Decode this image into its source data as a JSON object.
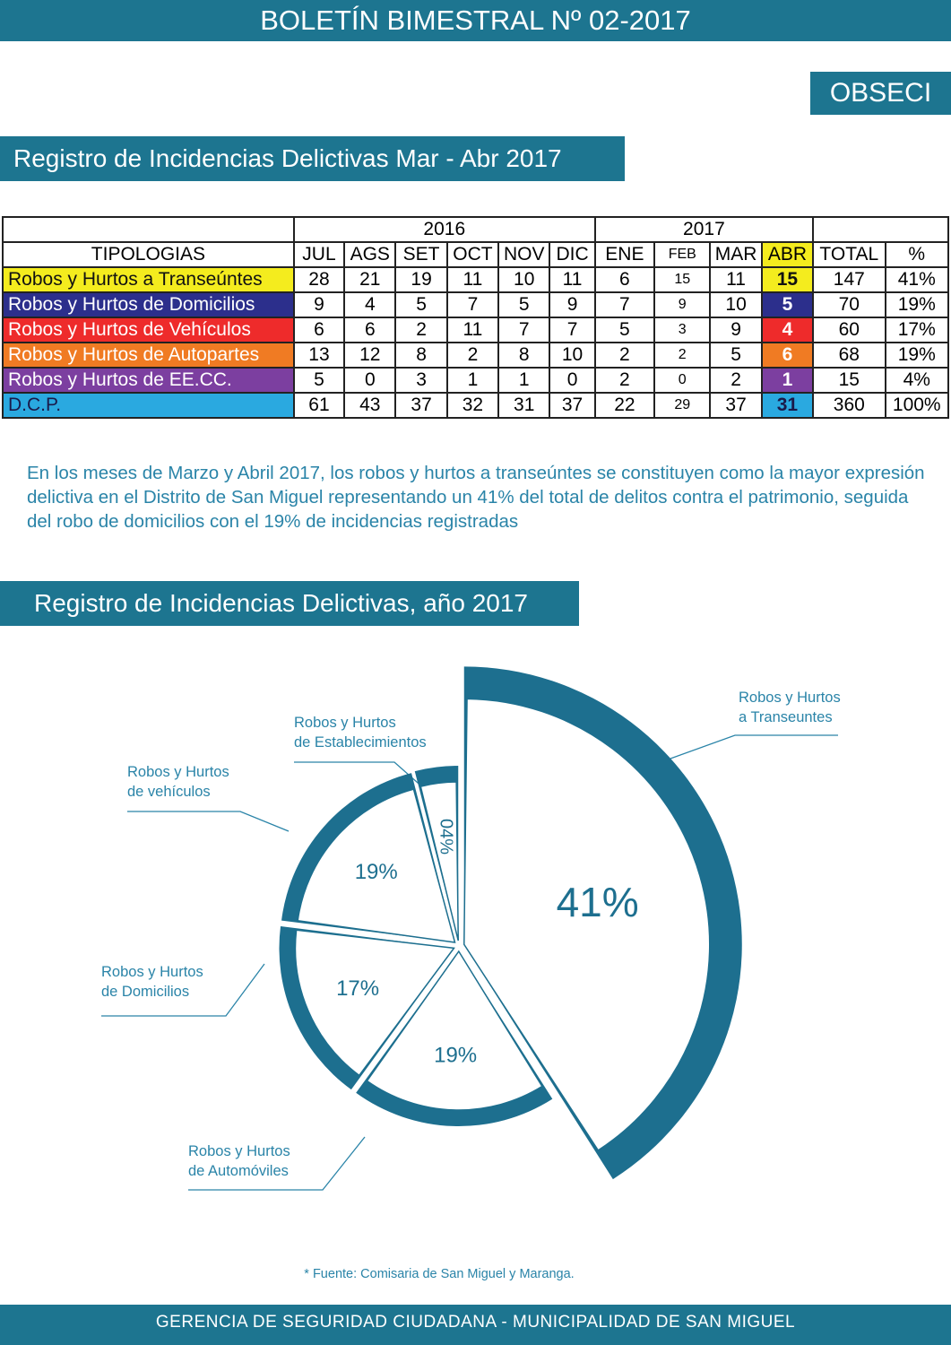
{
  "header": {
    "title": "BOLETÍN BIMESTRAL Nº 02-2017",
    "org": "OBSECI"
  },
  "section1": {
    "title": "Registro de Incidencias Delictivas Mar - Abr 2017"
  },
  "table": {
    "year_headers": [
      "2016",
      "2017"
    ],
    "columns": [
      "TIPOLOGIAS",
      "JUL",
      "AGS",
      "SET",
      "OCT",
      "NOV",
      "DIC",
      "ENE",
      "FEB",
      "MAR",
      "ABR",
      "TOTAL",
      "%"
    ],
    "rows": [
      [
        "Robos y Hurtos a Transeúntes",
        "28",
        "21",
        "19",
        "11",
        "10",
        "11",
        "6",
        "15",
        "11",
        "15",
        "147",
        "41%"
      ],
      [
        "Robos y Hurtos de Domicilios",
        "9",
        "4",
        "5",
        "7",
        "5",
        "9",
        "7",
        "9",
        "10",
        "5",
        "70",
        "19%"
      ],
      [
        "Robos y Hurtos de Vehículos",
        "6",
        "6",
        "2",
        "11",
        "7",
        "7",
        "5",
        "3",
        "9",
        "4",
        "60",
        "17%"
      ],
      [
        "Robos y Hurtos de Autopartes",
        "13",
        "12",
        "8",
        "2",
        "8",
        "10",
        "2",
        "2",
        "5",
        "6",
        "68",
        "19%"
      ],
      [
        "Robos y Hurtos de EE.CC.",
        "5",
        "0",
        "3",
        "1",
        "1",
        "0",
        "2",
        "0",
        "2",
        "1",
        "15",
        "4%"
      ],
      [
        "D.C.P.",
        "61",
        "43",
        "37",
        "32",
        "31",
        "37",
        "22",
        "29",
        "37",
        "31",
        "360",
        "100%"
      ]
    ],
    "row_colors": [
      "#f4ec1e",
      "#2c2f8c",
      "#ee2b2b",
      "#f07b23",
      "#7c3fa0",
      "#2aa9e0"
    ],
    "row_text_colors": [
      "#111111",
      "#ffffff",
      "#ffffff",
      "#ffffff",
      "#ffffff",
      "#1a1a4a"
    ],
    "abr_header_color": "#f4ec1e"
  },
  "paragraph": "En los meses de Marzo y Abril 2017, los robos y hurtos a transeúntes se constituyen como la mayor expresión delictiva en el Distrito de San Miguel representando un 41% del total de delitos contra el patrimonio, seguida del robo de domicilios con el 19% de incidencias registradas",
  "section2": {
    "title": "Registro de Incidencias Delictivas, año 2017"
  },
  "chart_data": {
    "type": "pie",
    "categories": [
      "Robos y Hurtos\na Transeuntes",
      "Robos y Hurtos\nde Automóviles",
      "Robos y Hurtos\nde Domicilios",
      "Robos y Hurtos\nde vehículos",
      "Robos y Hurtos\nde Establecimientos"
    ],
    "values": [
      41,
      19,
      17,
      19,
      4
    ],
    "value_labels": [
      "41%",
      "19%",
      "17%",
      "19%",
      "04%"
    ],
    "color": "#1d6f8f"
  },
  "source": "* Fuente: Comisaria de San Miguel y Maranga.",
  "footer": "GERENCIA DE SEGURIDAD CIUDADANA - MUNICIPALIDAD DE SAN MIGUEL"
}
